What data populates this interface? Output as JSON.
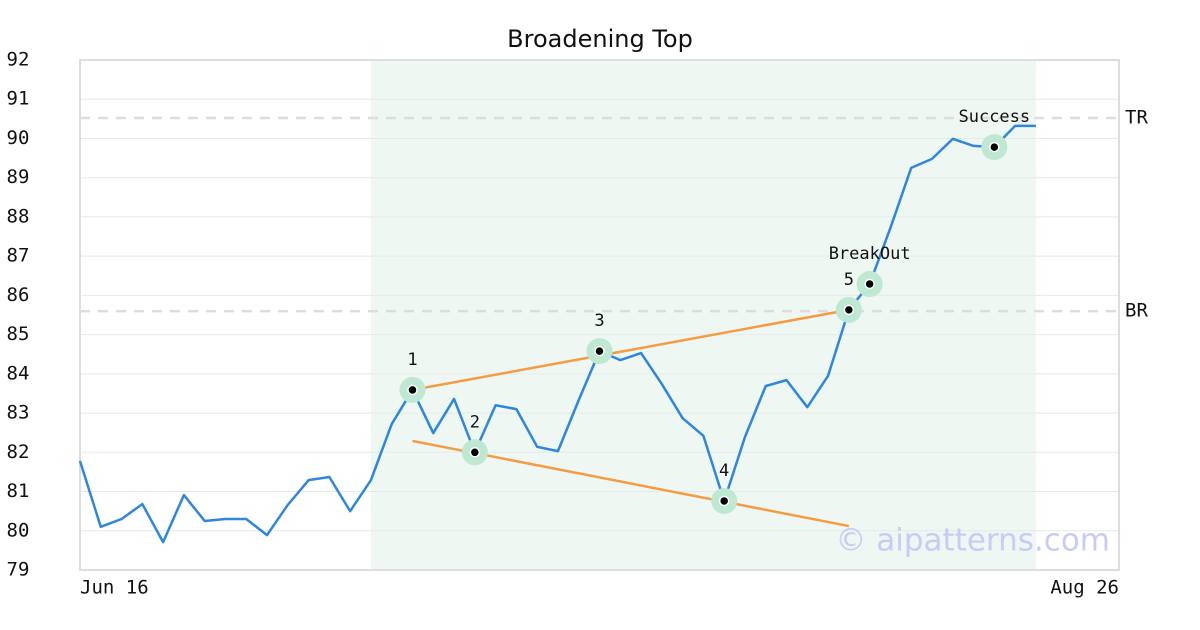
{
  "chart_data": {
    "type": "line",
    "title": "Broadening Top",
    "xlim": [
      0,
      50
    ],
    "xticks": [
      {
        "value": 0,
        "label": "Jun 16"
      },
      {
        "value": 50,
        "label": "Aug 26"
      }
    ],
    "ylim": [
      79,
      92
    ],
    "yticks": [
      79,
      80,
      81,
      82,
      83,
      84,
      85,
      86,
      87,
      88,
      89,
      90,
      91,
      92
    ],
    "grid": true,
    "highlight_xrange": [
      14,
      46
    ],
    "series": [
      {
        "color": "#2e86de",
        "x": [
          0,
          1,
          2,
          3,
          4,
          5,
          6,
          7,
          8,
          9,
          10,
          11,
          12,
          13,
          14,
          15,
          16,
          17,
          18,
          19,
          20,
          21,
          22,
          23,
          24,
          25,
          26,
          27,
          28,
          29,
          30,
          31,
          32,
          33,
          34,
          35,
          36,
          37,
          38,
          39,
          40,
          41,
          42,
          43,
          44,
          45,
          46
        ],
        "values": [
          81.78,
          80.1,
          80.3,
          80.68,
          79.71,
          80.91,
          80.25,
          80.3,
          80.3,
          79.89,
          80.66,
          81.29,
          81.37,
          80.5,
          81.29,
          82.72,
          83.59,
          82.49,
          83.36,
          82.0,
          83.2,
          83.1,
          82.14,
          82.03,
          83.33,
          84.58,
          84.35,
          84.53,
          83.74,
          82.87,
          82.42,
          80.76,
          82.39,
          83.69,
          83.84,
          83.15,
          83.95,
          85.63,
          86.29,
          87.72,
          89.25,
          89.48,
          89.99,
          89.81,
          89.78,
          90.32,
          90.32
        ]
      }
    ],
    "trend_lines": [
      {
        "color": "#f59c42",
        "x": [
          16,
          37
        ],
        "y": [
          83.59,
          85.63
        ]
      },
      {
        "color": "#f59c42",
        "x": [
          16,
          37
        ],
        "y": [
          82.29,
          80.12
        ]
      }
    ],
    "levels": [
      {
        "label": "TR",
        "value": 90.52
      },
      {
        "label": "BR",
        "value": 85.6
      }
    ],
    "pivots": [
      {
        "label": "1",
        "x": 16,
        "y": 83.59
      },
      {
        "label": "2",
        "x": 19,
        "y": 82.0
      },
      {
        "label": "3",
        "x": 25,
        "y": 84.58
      },
      {
        "label": "4",
        "x": 31,
        "y": 80.76
      },
      {
        "label": "5",
        "x": 37,
        "y": 85.63
      },
      {
        "label": "BreakOut",
        "x": 38,
        "y": 86.29
      },
      {
        "label": "Success",
        "x": 44,
        "y": 89.78
      }
    ],
    "watermark": "© aipatterns.com"
  }
}
